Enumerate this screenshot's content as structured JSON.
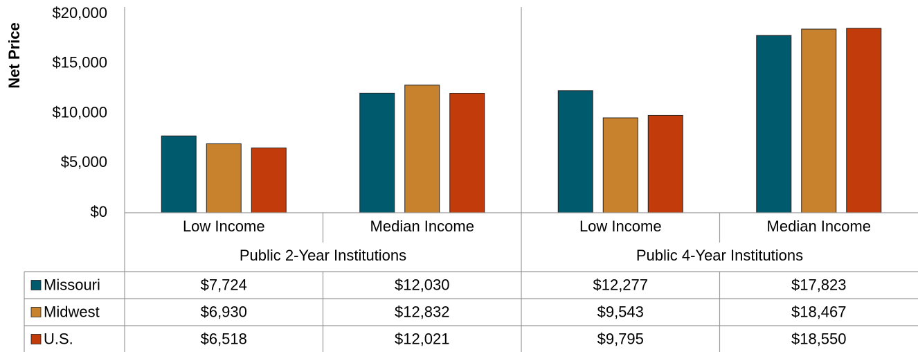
{
  "chart_data": {
    "type": "bar",
    "y_label": "Net Price",
    "categories": [
      "Low Income",
      "Median Income",
      "Low Income",
      "Median Income"
    ],
    "groups": [
      "Public 2-Year Institutions",
      "Public 4-Year Institutions"
    ],
    "series": [
      {
        "name": "Missouri",
        "color": "#005a6e",
        "values": [
          7724,
          12030,
          12277,
          17823
        ],
        "value_labels": [
          "$7,724",
          "$12,030",
          "$12,277",
          "$17,823"
        ]
      },
      {
        "name": "Midwest",
        "color": "#c8822e",
        "values": [
          6930,
          12832,
          9543,
          18467
        ],
        "value_labels": [
          "$6,930",
          "$12,832",
          "$9,543",
          "$18,467"
        ]
      },
      {
        "name": "U.S.",
        "color": "#c23b0a",
        "values": [
          6518,
          12021,
          9795,
          18550
        ],
        "value_labels": [
          "$6,518",
          "$12,021",
          "$9,795",
          "$18,550"
        ]
      }
    ],
    "ylim": [
      0,
      20000
    ],
    "yticks": [
      {
        "value": 0,
        "label": "$0"
      },
      {
        "value": 5000,
        "label": "$5,000"
      },
      {
        "value": 10000,
        "label": "$10,000"
      },
      {
        "value": 15000,
        "label": "$15,000"
      },
      {
        "value": 20000,
        "label": "$20,000"
      }
    ],
    "grid": false
  }
}
